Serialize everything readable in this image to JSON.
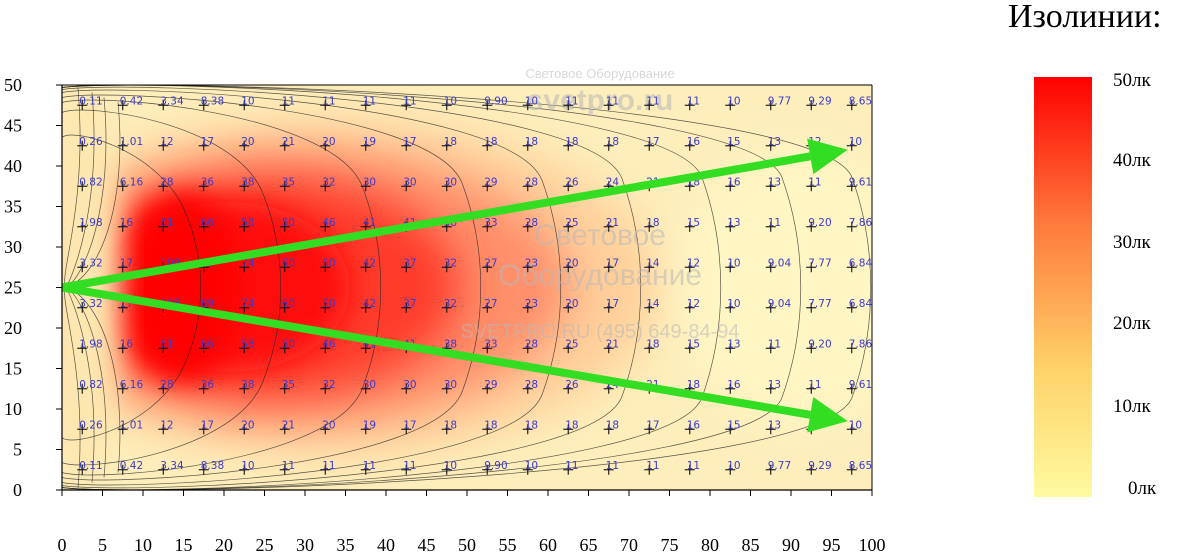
{
  "legend": {
    "title": "Изолинии:",
    "labels": [
      "50лк",
      "40лк",
      "30лк",
      "20лк",
      "10лк",
      "0лк"
    ],
    "colors": [
      "#ff0000",
      "#ff7a3c",
      "#ffd36a",
      "#fffaa0"
    ]
  },
  "watermarks": {
    "top_line1": "Световое Оборудование",
    "top_line2": "svetpro.ru",
    "center_line1": "Световое",
    "center_line2": "Оборудование",
    "center_line3": "SVETPRO.RU  (495) 649-84-94"
  },
  "chart_data": {
    "type": "heatmap",
    "title": "",
    "xlabel": "",
    "ylabel": "",
    "xlim": [
      0,
      100
    ],
    "ylim": [
      0,
      50
    ],
    "x_ticks": [
      0,
      5,
      10,
      15,
      20,
      25,
      30,
      35,
      40,
      45,
      50,
      55,
      60,
      65,
      70,
      75,
      80,
      85,
      90,
      95,
      100
    ],
    "y_ticks": [
      0,
      5,
      10,
      15,
      20,
      25,
      30,
      35,
      40,
      45,
      50
    ],
    "grid_x": [
      2.5,
      7.5,
      12.5,
      17.5,
      22.5,
      27.5,
      32.5,
      37.5,
      42.5,
      47.5,
      52.5,
      57.5,
      62.5,
      67.5,
      72.5,
      77.5,
      82.5,
      87.5,
      92.5,
      97.5
    ],
    "grid_y": [
      47.5,
      42.5,
      37.5,
      32.5,
      27.5,
      22.5,
      17.5,
      12.5,
      7.5,
      2.5
    ],
    "values": [
      [
        "0.11",
        "0.42",
        "3.34",
        "8.38",
        "10",
        "11",
        "11",
        "11",
        "11",
        "10",
        "9.90",
        "10",
        "11",
        "11",
        "11",
        "11",
        "10",
        "9.77",
        "9.29",
        "8.65"
      ],
      [
        "0.26",
        "1.01",
        "12",
        "17",
        "20",
        "21",
        "20",
        "19",
        "17",
        "18",
        "18",
        "18",
        "18",
        "18",
        "17",
        "16",
        "15",
        "13",
        "12",
        "10"
      ],
      [
        "0.82",
        "6.16",
        "28",
        "36",
        "38",
        "35",
        "32",
        "30",
        "30",
        "30",
        "29",
        "28",
        "26",
        "24",
        "21",
        "18",
        "16",
        "13",
        "11",
        "9.61"
      ],
      [
        "1.98",
        "16",
        "61",
        "66",
        "58",
        "50",
        "46",
        "41",
        "41",
        "38",
        "33",
        "28",
        "25",
        "21",
        "18",
        "15",
        "13",
        "11",
        "9.20",
        "7.86"
      ],
      [
        "3.32",
        "17",
        "109",
        "89",
        "74",
        "60",
        "50",
        "42",
        "37",
        "32",
        "27",
        "23",
        "20",
        "17",
        "14",
        "12",
        "10",
        "9.04",
        "7.77",
        "6.84"
      ],
      [
        "3.32",
        "17",
        "108",
        "89",
        "74",
        "60",
        "50",
        "42",
        "37",
        "32",
        "27",
        "23",
        "20",
        "17",
        "14",
        "12",
        "10",
        "9.04",
        "7.77",
        "6.84"
      ],
      [
        "1.98",
        "16",
        "61",
        "66",
        "58",
        "50",
        "46",
        "41",
        "41",
        "38",
        "33",
        "28",
        "25",
        "21",
        "18",
        "15",
        "13",
        "11",
        "9.20",
        "7.86"
      ],
      [
        "0.82",
        "6.16",
        "28",
        "36",
        "38",
        "35",
        "32",
        "30",
        "30",
        "30",
        "29",
        "28",
        "26",
        "24",
        "21",
        "18",
        "16",
        "13",
        "11",
        "9.61"
      ],
      [
        "0.26",
        "1.01",
        "12",
        "17",
        "20",
        "21",
        "20",
        "19",
        "17",
        "18",
        "18",
        "18",
        "18",
        "18",
        "17",
        "16",
        "15",
        "13",
        "12",
        "10"
      ],
      [
        "0.11",
        "0.42",
        "3.34",
        "8.38",
        "10",
        "11",
        "11",
        "11",
        "11",
        "10",
        "9.90",
        "10",
        "11",
        "11",
        "11",
        "11",
        "10",
        "9.77",
        "9.29",
        "8.65"
      ]
    ],
    "arrows": [
      {
        "from": [
          0,
          25
        ],
        "to": [
          97,
          42
        ]
      },
      {
        "from": [
          0,
          25
        ],
        "to": [
          97,
          8.5
        ]
      }
    ],
    "arrow_color": "#33dd22"
  }
}
